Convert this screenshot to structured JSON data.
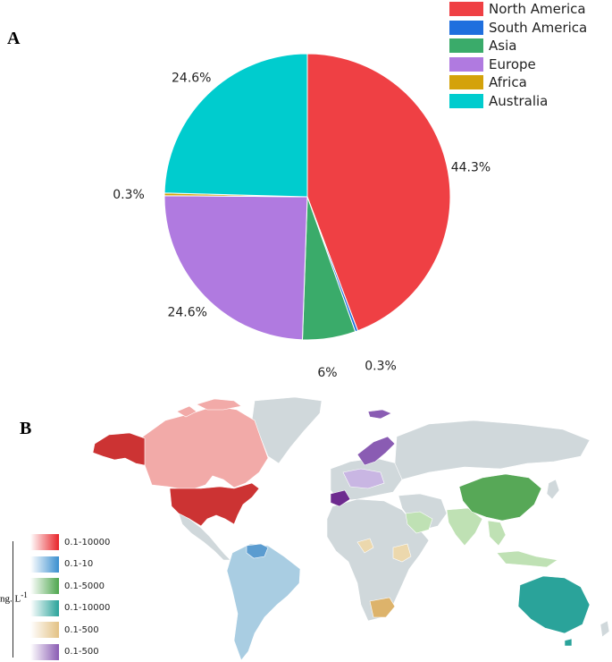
{
  "panel_a_label": "A",
  "panel_b_label": "B",
  "chart_data": {
    "type": "pie",
    "slices": [
      {
        "name": "North America",
        "value": 44.3,
        "label": "44.3%",
        "color": "#ef4044"
      },
      {
        "name": "South America",
        "value": 0.3,
        "label": "0.3%",
        "color": "#1f6fde"
      },
      {
        "name": "Asia",
        "value": 6,
        "label": "6%",
        "color": "#3aab6a"
      },
      {
        "name": "Europe",
        "value": 24.6,
        "label": "24.6%",
        "color": "#b07ae0"
      },
      {
        "name": "Africa",
        "value": 0.3,
        "label": "0.3%",
        "color": "#d4a20a"
      },
      {
        "name": "Australia",
        "value": 24.6,
        "label": "24.6%",
        "color": "#00ccce"
      }
    ],
    "start_angle_deg": 0,
    "direction": "clockwise",
    "legend_position": "top-right"
  },
  "map": {
    "unit_label": "ng. L",
    "unit_exponent": "-1",
    "ocean_color": "#ffffff",
    "land_color": "#d0d8db",
    "scale": [
      {
        "range": "0.1-10000",
        "color": "#e8242a"
      },
      {
        "range": "0.1-10",
        "color": "#3a8fcf"
      },
      {
        "range": "0.1-5000",
        "color": "#4ea64e"
      },
      {
        "range": "0.1-10000",
        "color": "#2aa39a"
      },
      {
        "range": "0.1-500",
        "color": "#e3c184"
      },
      {
        "range": "0.1-500",
        "color": "#8a5cb3"
      }
    ]
  }
}
